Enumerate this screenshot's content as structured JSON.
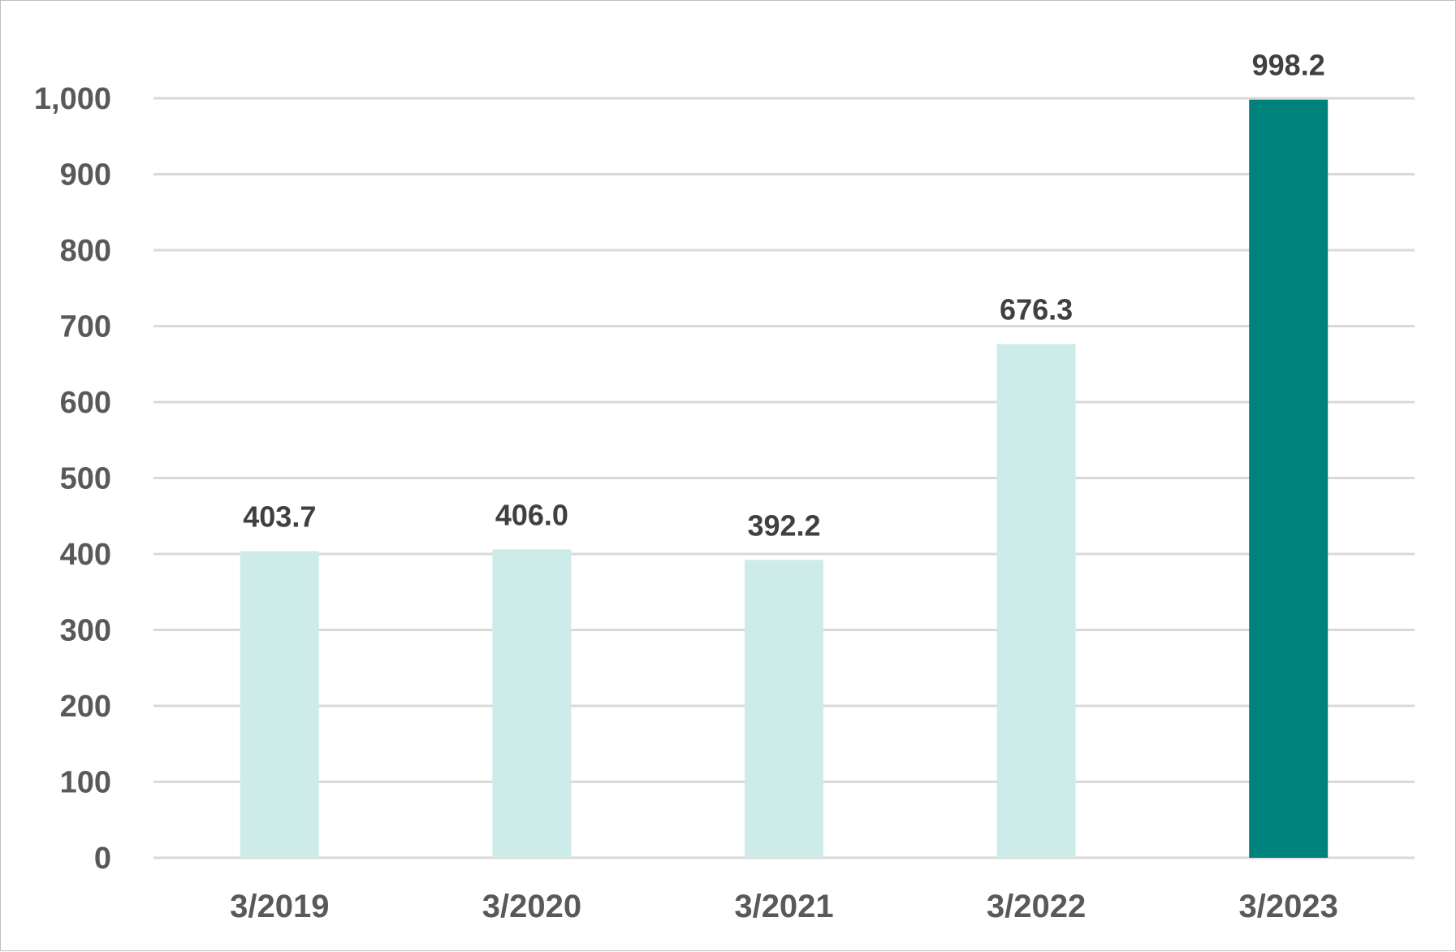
{
  "chart_data": {
    "type": "bar",
    "title": "",
    "xlabel": "",
    "ylabel": "",
    "categories": [
      "3/2019",
      "3/2020",
      "3/2021",
      "3/2022",
      "3/2023"
    ],
    "values": [
      403.7,
      406.0,
      392.2,
      676.3,
      998.2
    ],
    "value_labels": [
      "403.7",
      "406.0",
      "392.2",
      "676.3",
      "998.2"
    ],
    "ylim": [
      0,
      1000
    ],
    "yticks": [
      0,
      100,
      200,
      300,
      400,
      500,
      600,
      700,
      800,
      900,
      1000
    ],
    "ytick_labels": [
      "0",
      "100",
      "200",
      "300",
      "400",
      "500",
      "600",
      "700",
      "800",
      "900",
      "1,000"
    ],
    "grid": true,
    "legend": "none",
    "colors": {
      "bar": "#cdebe9",
      "highlight_bar": "#00827c",
      "grid": "#d9d9d9",
      "axis_text": "#595959",
      "label_text": "#404040"
    },
    "highlight_index": 4
  }
}
